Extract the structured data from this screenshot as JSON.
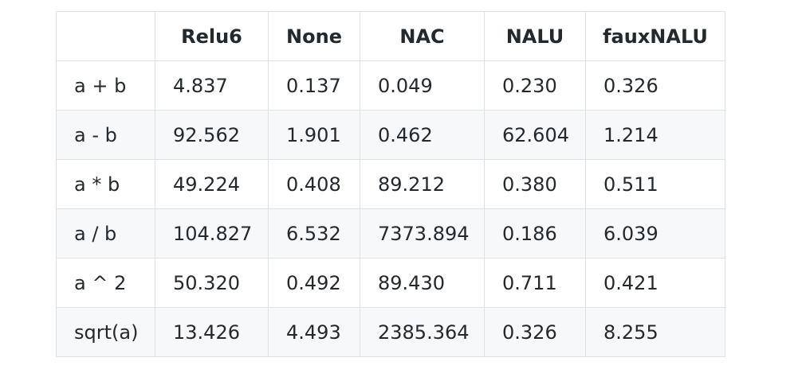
{
  "table": {
    "columns": [
      "",
      "Relu6",
      "None",
      "NAC",
      "NALU",
      "fauxNALU"
    ],
    "rows": [
      [
        "a + b",
        "4.837",
        "0.137",
        "0.049",
        "0.230",
        "0.326"
      ],
      [
        "a - b",
        "92.562",
        "1.901",
        "0.462",
        "62.604",
        "1.214"
      ],
      [
        "a * b",
        "49.224",
        "0.408",
        "89.212",
        "0.380",
        "0.511"
      ],
      [
        "a / b",
        "104.827",
        "6.532",
        "7373.894",
        "0.186",
        "6.039"
      ],
      [
        "a ^ 2",
        "50.320",
        "0.492",
        "89.430",
        "0.711",
        "0.421"
      ],
      [
        "sqrt(a)",
        "13.426",
        "4.493",
        "2385.364",
        "0.326",
        "8.255"
      ]
    ]
  }
}
